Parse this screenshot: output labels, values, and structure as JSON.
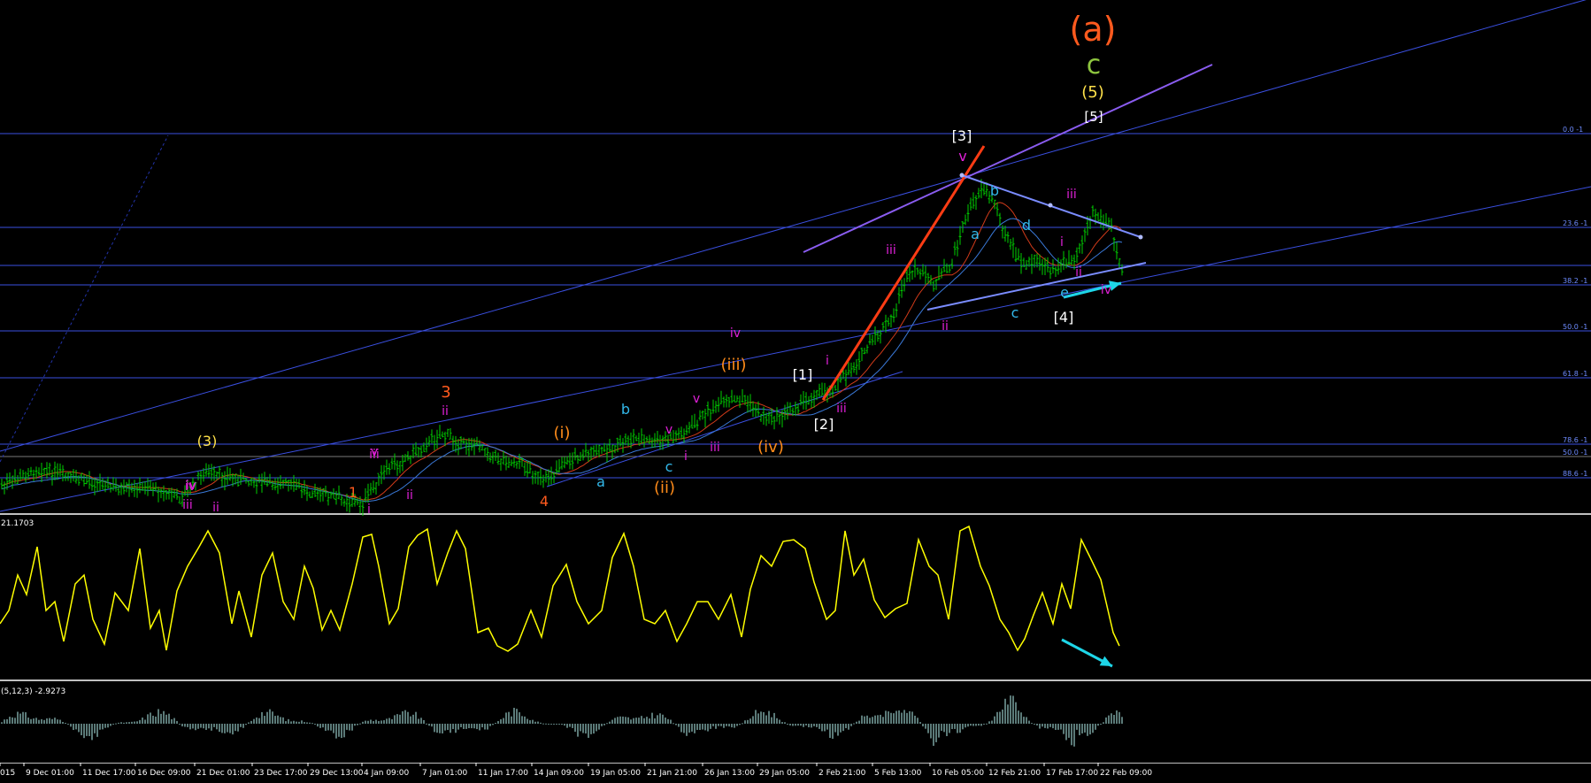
{
  "colors": {
    "background": "#000000",
    "candle": "#00d000",
    "ma_fast": "#d23b1a",
    "ma_slow": "#3a79d8",
    "fib_line": "#3a4fe0",
    "channel_line": "#3a4fe0",
    "triangle_line": "#7a8cff",
    "purple_line": "#8a5cf0",
    "red_trend": "#ff3c14",
    "oscillator": "#ffff00",
    "macd_hist": "#5b7a78",
    "arrow": "#1ed6e8"
  },
  "indicators": {
    "oscillator_label": "21.1703",
    "macd_label": "(5,12,3) -2.9273"
  },
  "chart_data": {
    "type": "candlestick",
    "title": "",
    "xlabel": "",
    "ylabel": "",
    "grid": false,
    "time_labels": [
      "015",
      "9 Dec 01:00",
      "11 Dec 17:00",
      "16 Dec 09:00",
      "21 Dec 01:00",
      "23 Dec 17:00",
      "29 Dec 13:00",
      "4 Jan 09:00",
      "7 Jan 01:00",
      "11 Jan 17:00",
      "14 Jan 09:00",
      "19 Jan 05:00",
      "21 Jan 21:00",
      "26 Jan 13:00",
      "29 Jan 05:00",
      "2 Feb 21:00",
      "5 Feb 13:00",
      "10 Feb 05:00",
      "12 Feb 21:00",
      "17 Feb 17:00",
      "22 Feb 09:00"
    ],
    "fib_levels": [
      "0.0 -1",
      "23.6 -1",
      "38.2 -1",
      "50.0 -1",
      "61.8 -1",
      "78.6 -1",
      "50.0 -1",
      "88.6 -1"
    ],
    "wave_labels": {
      "red": [
        "(a)",
        "3",
        "4",
        "1"
      ],
      "green": [
        "c"
      ],
      "yellow": [
        "(5)",
        "(3)"
      ],
      "white": [
        "[5]",
        "[3]",
        "[1]",
        "[2]",
        "[4]"
      ],
      "magenta": [
        "v",
        "iii",
        "iii",
        "i",
        "ii",
        "iv",
        "ii",
        "i",
        "iii",
        "v",
        "iv",
        "iii",
        "v",
        "i",
        "ii",
        "iii",
        "v",
        "i",
        "ii",
        "iv",
        "iii",
        "ii",
        "iv"
      ],
      "orange": [
        "(iii)",
        "(i)",
        "(iv)",
        "(ii)"
      ],
      "cyan": [
        "b",
        "a",
        "d",
        "c",
        "e",
        "b",
        "a",
        "c"
      ]
    }
  }
}
